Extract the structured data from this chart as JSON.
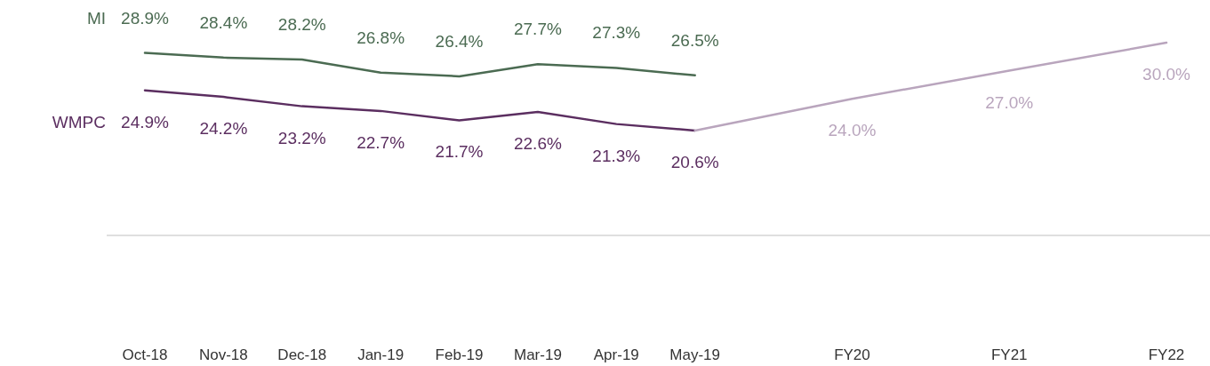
{
  "chart_data": {
    "type": "line",
    "categories": [
      "Oct-18",
      "Nov-18",
      "Dec-18",
      "Jan-19",
      "Feb-19",
      "Mar-19",
      "Apr-19",
      "May-19",
      null,
      "FY20",
      null,
      "FY21",
      null,
      "FY22"
    ],
    "series": [
      {
        "name": "MI",
        "color": "#4b6b52",
        "values": [
          28.9,
          28.4,
          28.2,
          26.8,
          26.4,
          27.7,
          27.3,
          26.5,
          null,
          null,
          null,
          null,
          null,
          null
        ],
        "value_labels": [
          "28.9%",
          "28.4%",
          "28.2%",
          "26.8%",
          "26.4%",
          "27.7%",
          "27.3%",
          "26.5%",
          null,
          null,
          null,
          null,
          null,
          null
        ]
      },
      {
        "name": "WMPC",
        "color": "#5b2e60",
        "values": [
          24.9,
          24.2,
          23.2,
          22.7,
          21.7,
          22.6,
          21.3,
          20.6,
          null,
          null,
          null,
          null,
          null,
          null
        ],
        "value_labels": [
          "24.9%",
          "24.2%",
          "23.2%",
          "22.7%",
          "21.7%",
          "22.6%",
          "21.3%",
          "20.6%",
          null,
          null,
          null,
          null,
          null,
          null
        ]
      },
      {
        "color": "#b9a5bd",
        "values": [
          null,
          null,
          null,
          null,
          null,
          null,
          null,
          20.6,
          null,
          24.0,
          null,
          27.0,
          null,
          30.0
        ],
        "value_labels": [
          null,
          null,
          null,
          null,
          null,
          null,
          null,
          null,
          null,
          "24.0%",
          null,
          "27.0%",
          null,
          "30.0%"
        ]
      }
    ],
    "line_style": "solid"
  }
}
